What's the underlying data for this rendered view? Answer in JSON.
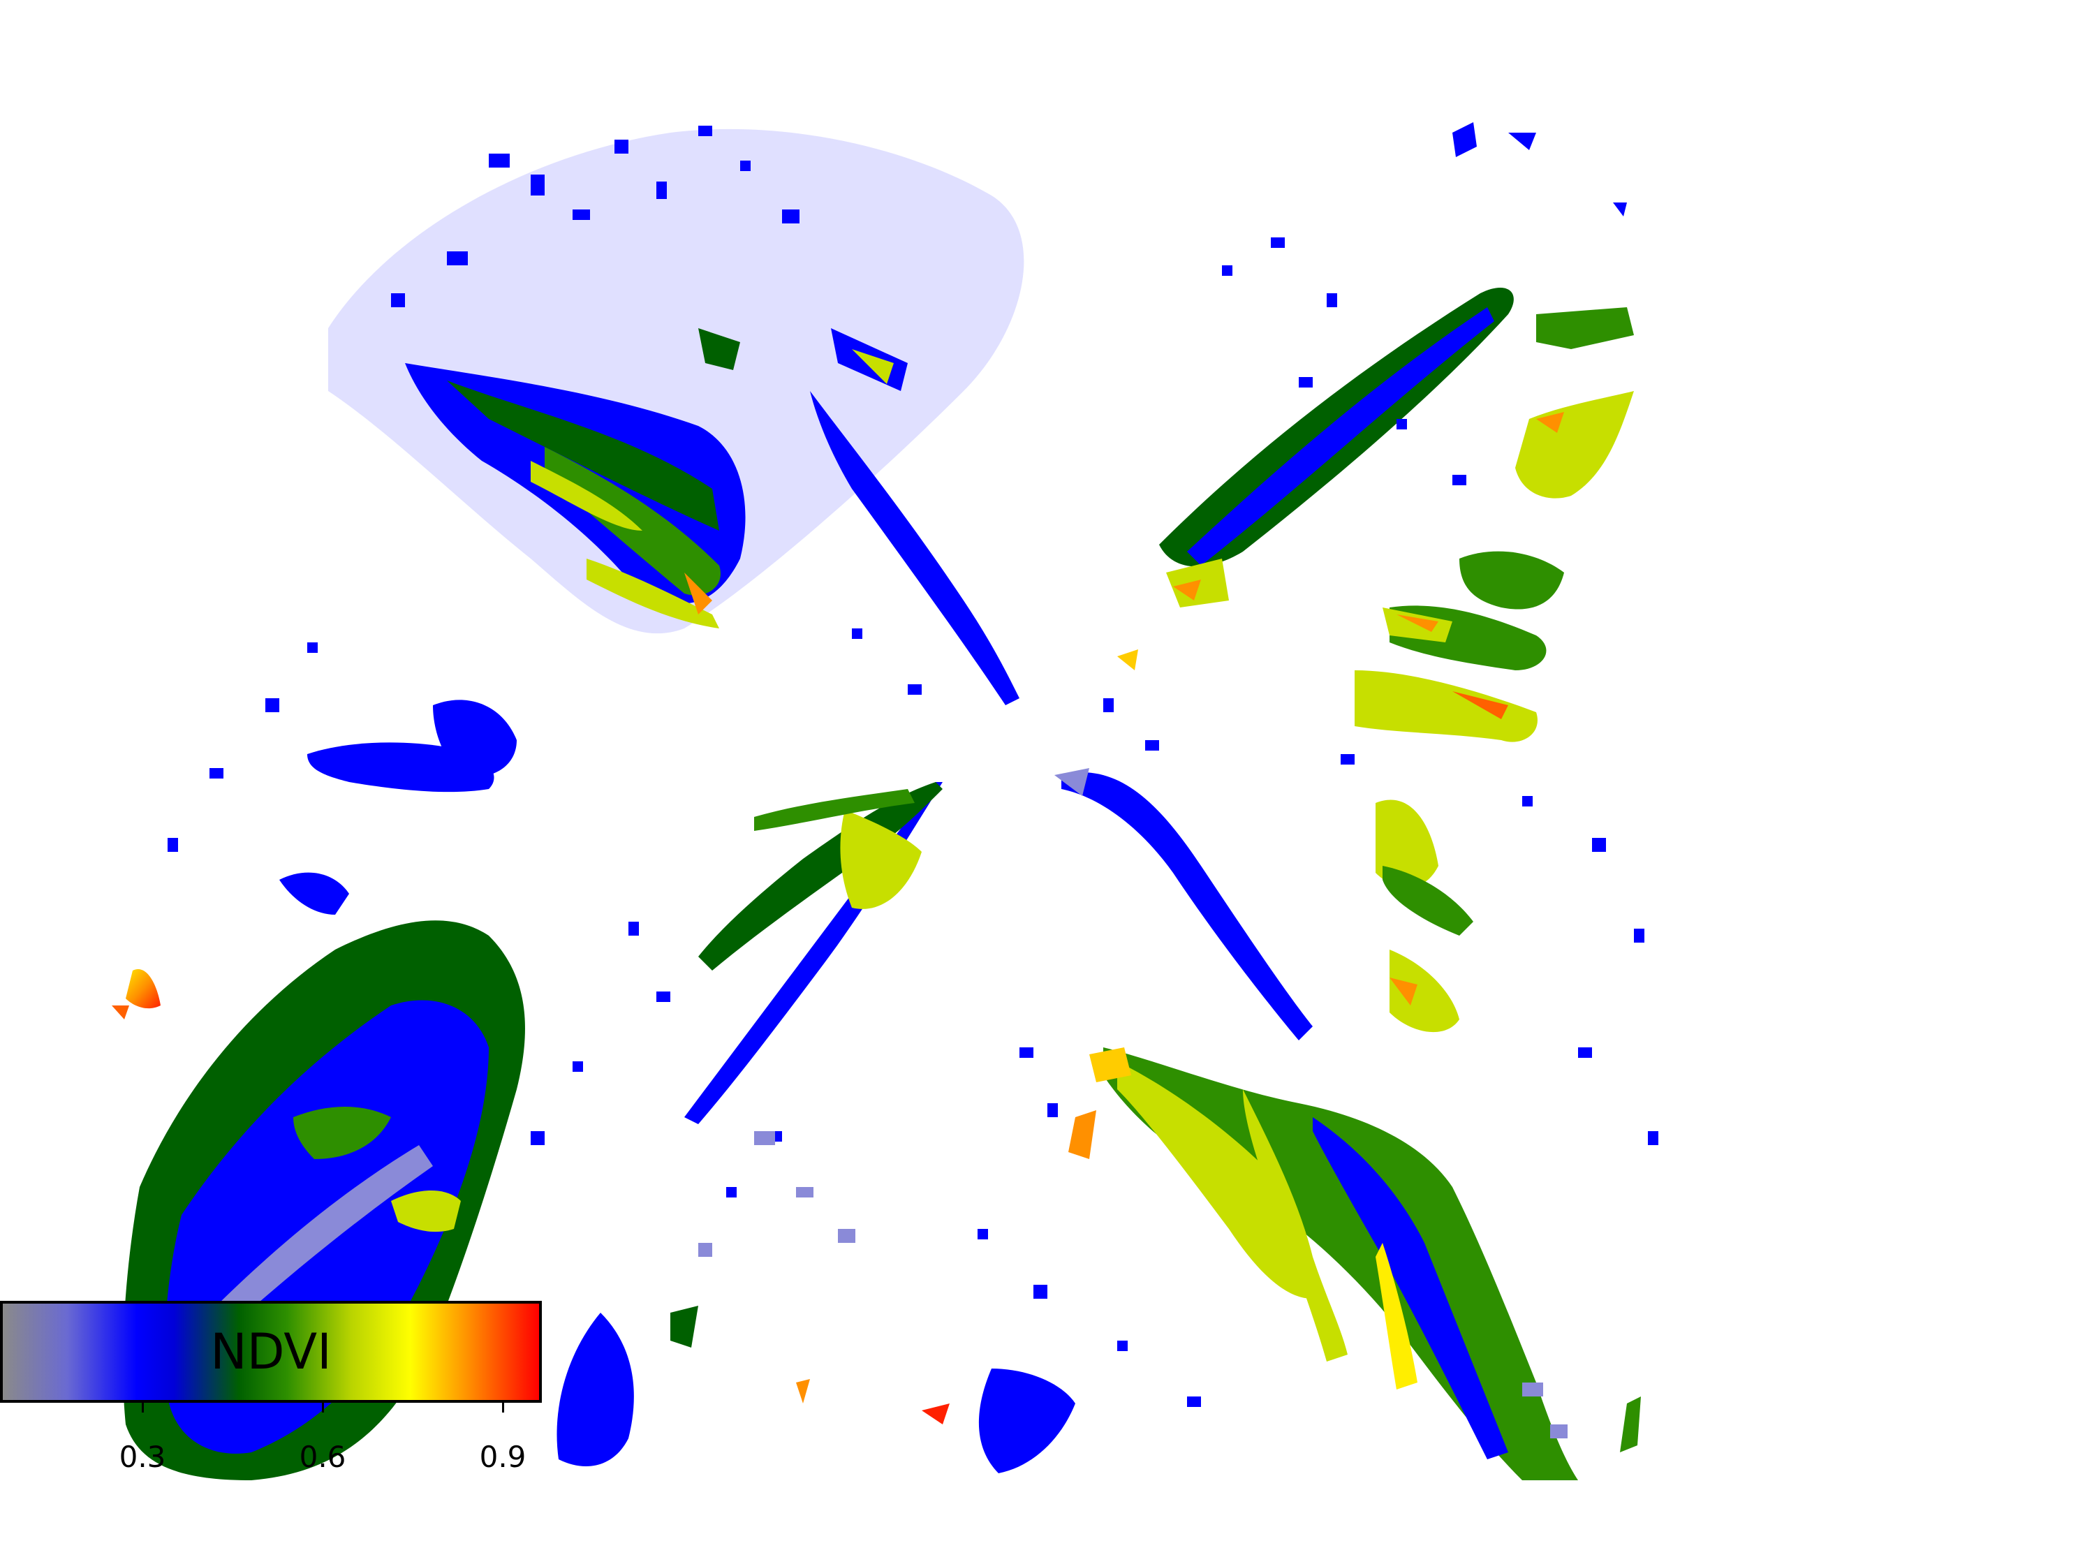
{
  "figure": {
    "colorbar": {
      "label": "NDVI",
      "ticks": [
        "0.3",
        "0.6",
        "0.9"
      ],
      "colors": {
        "low": "#8a8a8a",
        "blue": "#0000ff",
        "green": "#2e8f00",
        "yellow": "#ffff00",
        "high": "#ff0000"
      }
    }
  }
}
